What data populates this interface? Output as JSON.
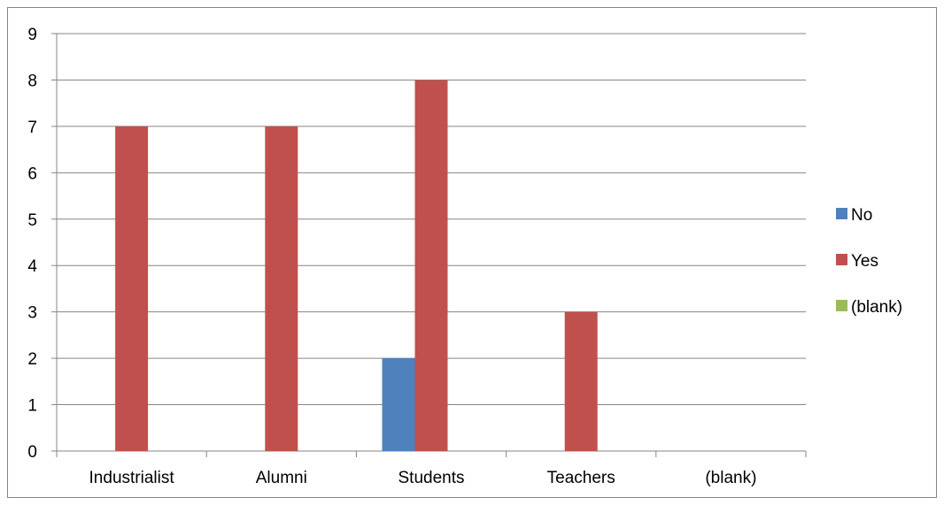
{
  "chart_data": {
    "type": "bar",
    "categories": [
      "Industrialist",
      "Alumni",
      "Students",
      "Teachers",
      "(blank)"
    ],
    "series": [
      {
        "name": "No",
        "color": "#4F81BD",
        "values": [
          0,
          0,
          2,
          0,
          0
        ]
      },
      {
        "name": "Yes",
        "color": "#C0504D",
        "values": [
          7,
          7,
          8,
          3,
          0
        ]
      },
      {
        "name": "(blank)",
        "color": "#9BBB59",
        "values": [
          0,
          0,
          0,
          0,
          0
        ]
      }
    ],
    "ylim": [
      0,
      9
    ],
    "yticks": [
      "0",
      "1",
      "2",
      "3",
      "4",
      "5",
      "6",
      "7",
      "8",
      "9"
    ],
    "grid": true,
    "legend_position": "right"
  }
}
